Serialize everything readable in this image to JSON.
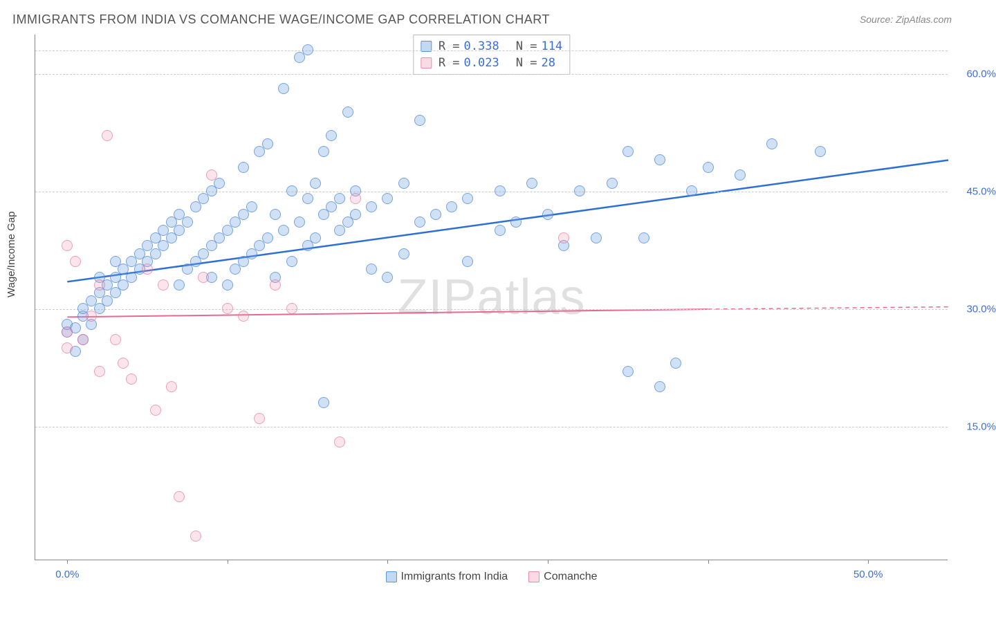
{
  "title": "IMMIGRANTS FROM INDIA VS COMANCHE WAGE/INCOME GAP CORRELATION CHART",
  "source": "Source: ZipAtlas.com",
  "ylabel": "Wage/Income Gap",
  "watermark": "ZIPatlas",
  "chart": {
    "type": "scatter",
    "xlim": [
      -2,
      55
    ],
    "ylim": [
      -2,
      65
    ],
    "x_ticks": [
      0,
      10,
      20,
      30,
      40,
      50
    ],
    "x_tick_labels": {
      "0": "0.0%",
      "50": "50.0%"
    },
    "y_gridlines": [
      15,
      30,
      45,
      60
    ],
    "y_grid_labels": {
      "15": "15.0%",
      "30": "30.0%",
      "45": "45.0%",
      "60": "60.0%"
    },
    "background_color": "#ffffff",
    "grid_color": "#cccccc",
    "axis_color": "#888888",
    "tick_label_color": "#3b6fd8",
    "point_radius": 8,
    "series": [
      {
        "name": "Immigrants from India",
        "color_fill": "rgba(120,170,230,0.35)",
        "color_stroke": "rgba(70,130,210,0.65)",
        "pt_class": "pt-blue",
        "R": "0.338",
        "N": "114",
        "trend": {
          "x1": 0,
          "y1": 33.5,
          "x2": 55,
          "y2": 49,
          "stroke": "#2e6fd6",
          "width": 2.5
        },
        "points": [
          [
            0,
            27
          ],
          [
            0,
            28
          ],
          [
            0.5,
            27.5
          ],
          [
            0.5,
            24.5
          ],
          [
            1,
            26
          ],
          [
            1,
            29
          ],
          [
            1,
            30
          ],
          [
            1.5,
            28
          ],
          [
            1.5,
            31
          ],
          [
            2,
            30
          ],
          [
            2,
            32
          ],
          [
            2,
            34
          ],
          [
            2.5,
            31
          ],
          [
            2.5,
            33
          ],
          [
            3,
            32
          ],
          [
            3,
            34
          ],
          [
            3,
            36
          ],
          [
            3.5,
            33
          ],
          [
            3.5,
            35
          ],
          [
            4,
            34
          ],
          [
            4,
            36
          ],
          [
            4.5,
            35
          ],
          [
            4.5,
            37
          ],
          [
            5,
            36
          ],
          [
            5,
            38
          ],
          [
            5.5,
            37
          ],
          [
            5.5,
            39
          ],
          [
            6,
            38
          ],
          [
            6,
            40
          ],
          [
            6.5,
            39
          ],
          [
            6.5,
            41
          ],
          [
            7,
            33
          ],
          [
            7,
            40
          ],
          [
            7,
            42
          ],
          [
            7.5,
            35
          ],
          [
            7.5,
            41
          ],
          [
            8,
            36
          ],
          [
            8,
            43
          ],
          [
            8.5,
            37
          ],
          [
            8.5,
            44
          ],
          [
            9,
            34
          ],
          [
            9,
            38
          ],
          [
            9,
            45
          ],
          [
            9.5,
            39
          ],
          [
            9.5,
            46
          ],
          [
            10,
            33
          ],
          [
            10,
            40
          ],
          [
            10.5,
            35
          ],
          [
            10.5,
            41
          ],
          [
            11,
            36
          ],
          [
            11,
            42
          ],
          [
            11,
            48
          ],
          [
            11.5,
            37
          ],
          [
            11.5,
            43
          ],
          [
            12,
            38
          ],
          [
            12,
            50
          ],
          [
            12.5,
            39
          ],
          [
            12.5,
            51
          ],
          [
            13,
            34
          ],
          [
            13,
            42
          ],
          [
            13.5,
            40
          ],
          [
            13.5,
            58
          ],
          [
            14,
            36
          ],
          [
            14,
            45
          ],
          [
            14.5,
            41
          ],
          [
            14.5,
            62
          ],
          [
            15,
            38
          ],
          [
            15,
            44
          ],
          [
            15,
            63
          ],
          [
            15.5,
            39
          ],
          [
            15.5,
            46
          ],
          [
            16,
            18
          ],
          [
            16,
            42
          ],
          [
            16,
            50
          ],
          [
            16.5,
            43
          ],
          [
            16.5,
            52
          ],
          [
            17,
            40
          ],
          [
            17,
            44
          ],
          [
            17.5,
            41
          ],
          [
            17.5,
            55
          ],
          [
            18,
            42
          ],
          [
            18,
            45
          ],
          [
            19,
            35
          ],
          [
            19,
            43
          ],
          [
            20,
            34
          ],
          [
            20,
            44
          ],
          [
            21,
            37
          ],
          [
            21,
            46
          ],
          [
            22,
            41
          ],
          [
            22,
            54
          ],
          [
            23,
            42
          ],
          [
            24,
            43
          ],
          [
            25,
            36
          ],
          [
            25,
            44
          ],
          [
            27,
            40
          ],
          [
            27,
            45
          ],
          [
            28,
            41
          ],
          [
            29,
            46
          ],
          [
            30,
            42
          ],
          [
            31,
            38
          ],
          [
            32,
            45
          ],
          [
            33,
            39
          ],
          [
            34,
            46
          ],
          [
            35,
            22
          ],
          [
            35,
            50
          ],
          [
            36,
            39
          ],
          [
            37,
            20
          ],
          [
            37,
            49
          ],
          [
            38,
            23
          ],
          [
            39,
            45
          ],
          [
            40,
            48
          ],
          [
            42,
            47
          ],
          [
            44,
            51
          ],
          [
            47,
            50
          ]
        ]
      },
      {
        "name": "Comanche",
        "color_fill": "rgba(240,150,180,0.25)",
        "color_stroke": "rgba(230,110,150,0.6)",
        "pt_class": "pt-pink",
        "R": "0.023",
        "N": "28",
        "trend": {
          "solid": {
            "x1": 0,
            "y1": 29,
            "x2": 40,
            "y2": 30,
            "stroke": "#e56a93",
            "width": 2
          },
          "dashed": {
            "x1": 40,
            "y1": 30,
            "x2": 55,
            "y2": 30.3,
            "stroke": "#e56a93",
            "width": 1.5
          }
        },
        "points": [
          [
            0,
            25
          ],
          [
            0,
            27
          ],
          [
            0,
            38
          ],
          [
            0.5,
            36
          ],
          [
            1,
            26
          ],
          [
            1.5,
            29
          ],
          [
            2,
            22
          ],
          [
            2,
            33
          ],
          [
            2.5,
            52
          ],
          [
            3,
            26
          ],
          [
            3.5,
            23
          ],
          [
            4,
            21
          ],
          [
            5,
            35
          ],
          [
            5.5,
            17
          ],
          [
            6,
            33
          ],
          [
            6.5,
            20
          ],
          [
            7,
            6
          ],
          [
            8,
            1
          ],
          [
            8.5,
            34
          ],
          [
            9,
            47
          ],
          [
            10,
            30
          ],
          [
            11,
            29
          ],
          [
            12,
            16
          ],
          [
            13,
            33
          ],
          [
            14,
            30
          ],
          [
            17,
            13
          ],
          [
            18,
            44
          ],
          [
            31,
            39
          ]
        ]
      }
    ]
  },
  "legend_top": {
    "rows": [
      {
        "sw": "sw-blue",
        "R_label": "R =",
        "R": "0.338",
        "N_label": "N =",
        "N": " 114"
      },
      {
        "sw": "sw-pink",
        "R_label": "R =",
        "R": "0.023",
        "N_label": "N =",
        "N": "  28"
      }
    ]
  },
  "legend_bottom": [
    {
      "sw": "sw-blue",
      "label": "Immigrants from India"
    },
    {
      "sw": "sw-pink",
      "label": "Comanche"
    }
  ]
}
